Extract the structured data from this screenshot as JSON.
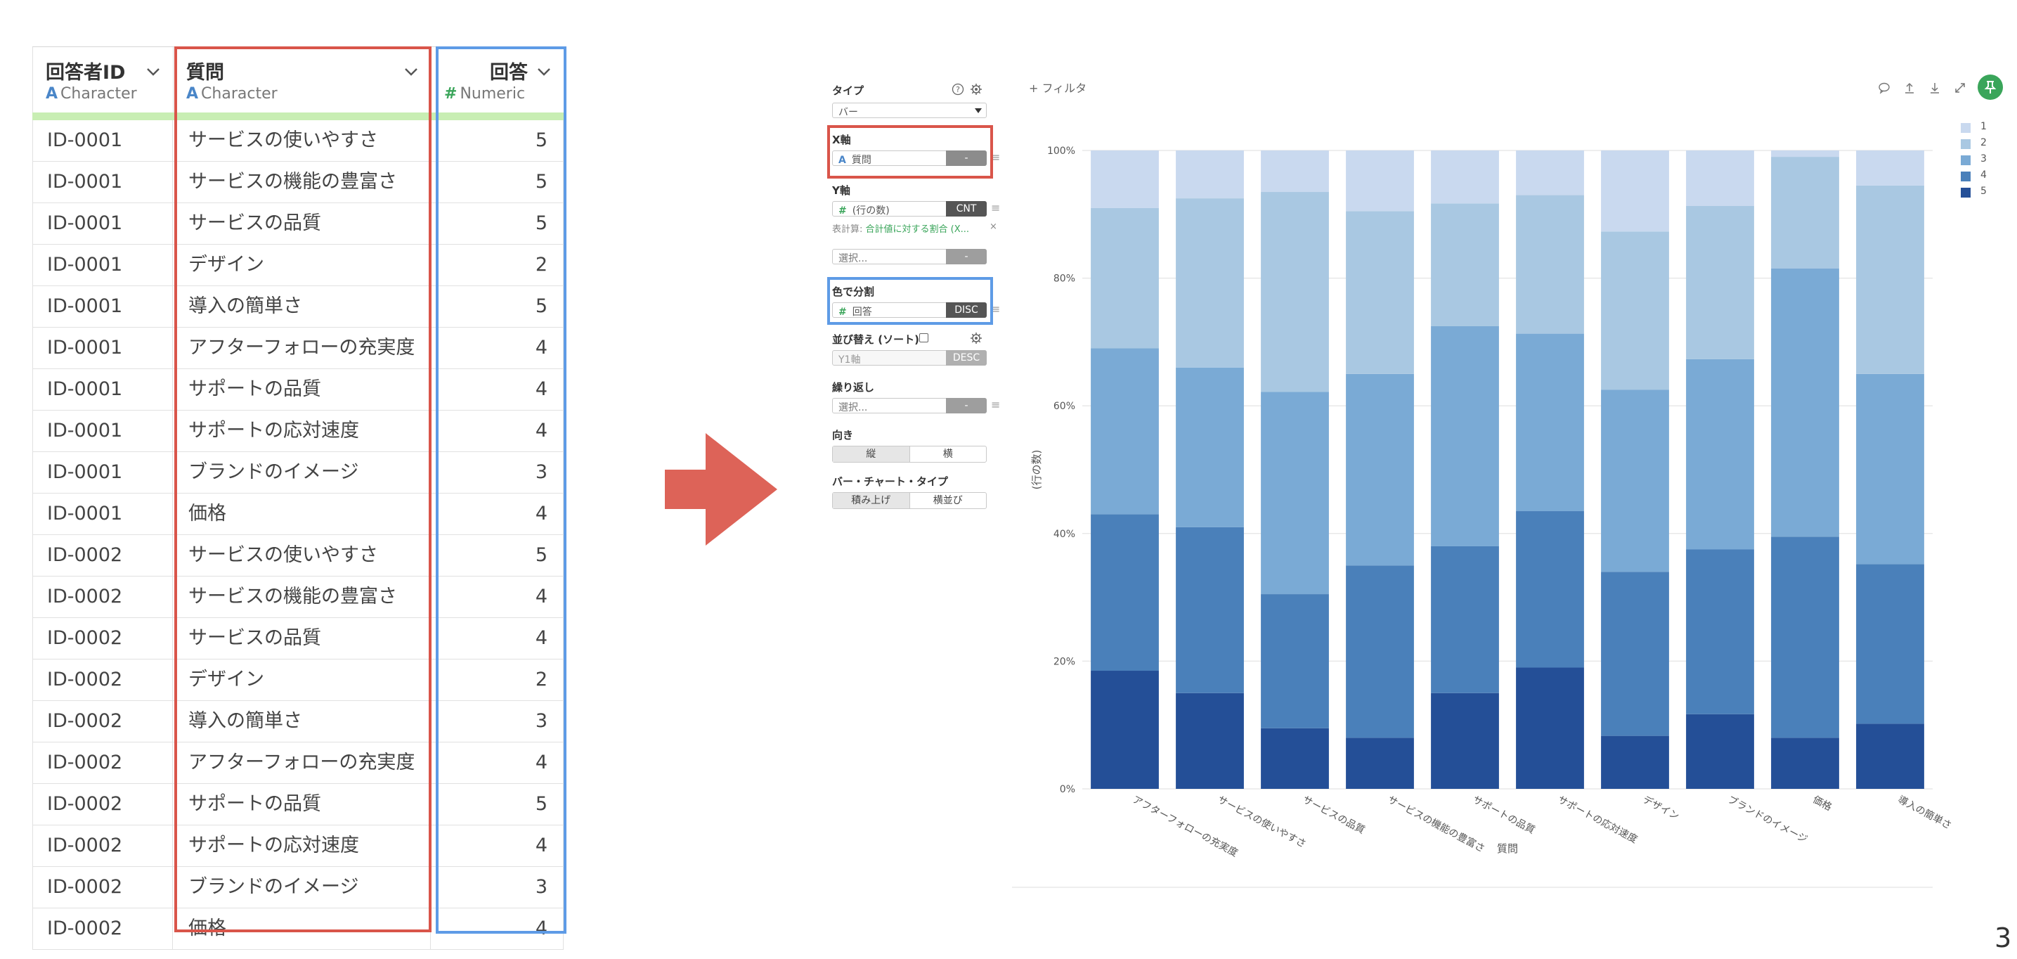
{
  "table": {
    "columns": [
      {
        "title": "回答者ID",
        "type_icon": "A",
        "type": "Character"
      },
      {
        "title": "質問",
        "type_icon": "A",
        "type": "Character"
      },
      {
        "title": "回答",
        "type_icon": "#",
        "type": "Numeric"
      }
    ],
    "rows": [
      [
        "ID-0001",
        "サービスの使いやすさ",
        "5"
      ],
      [
        "ID-0001",
        "サービスの機能の豊富さ",
        "5"
      ],
      [
        "ID-0001",
        "サービスの品質",
        "5"
      ],
      [
        "ID-0001",
        "デザイン",
        "2"
      ],
      [
        "ID-0001",
        "導入の簡単さ",
        "5"
      ],
      [
        "ID-0001",
        "アフターフォローの充実度",
        "4"
      ],
      [
        "ID-0001",
        "サポートの品質",
        "4"
      ],
      [
        "ID-0001",
        "サポートの応対速度",
        "4"
      ],
      [
        "ID-0001",
        "ブランドのイメージ",
        "3"
      ],
      [
        "ID-0001",
        "価格",
        "4"
      ],
      [
        "ID-0002",
        "サービスの使いやすさ",
        "5"
      ],
      [
        "ID-0002",
        "サービスの機能の豊富さ",
        "4"
      ],
      [
        "ID-0002",
        "サービスの品質",
        "4"
      ],
      [
        "ID-0002",
        "デザイン",
        "2"
      ],
      [
        "ID-0002",
        "導入の簡単さ",
        "3"
      ],
      [
        "ID-0002",
        "アフターフォローの充実度",
        "4"
      ],
      [
        "ID-0002",
        "サポートの品質",
        "5"
      ],
      [
        "ID-0002",
        "サポートの応対速度",
        "4"
      ],
      [
        "ID-0002",
        "ブランドのイメージ",
        "3"
      ],
      [
        "ID-0002",
        "価格",
        "4"
      ]
    ]
  },
  "panel": {
    "type_label": "タイプ",
    "type_value": "バー",
    "x_label": "X軸",
    "x_field": "質問",
    "x_button": "-",
    "y_label": "Y軸",
    "y_field": "(行の数)",
    "y_button": "CNT",
    "y_calc_prefix": "表計算:",
    "y_calc_value": "合計値に対する割合 (X...",
    "y_extra_placeholder": "選択...",
    "y_extra_button": "-",
    "color_label": "色で分割",
    "color_field": "回答",
    "color_button": "DISC",
    "sort_label": "並び替え (ソート)",
    "sort_field": "Y1軸",
    "sort_button": "DESC",
    "repeat_label": "繰り返し",
    "repeat_placeholder": "選択...",
    "repeat_button": "-",
    "orient_label": "向き",
    "orient_options": [
      "縦",
      "横"
    ],
    "bartype_label": "バー・チャート・タイプ",
    "bartype_options": [
      "積み上げ",
      "横並び"
    ]
  },
  "toolbar": {
    "filter": "フィルタ"
  },
  "colors": {
    "red_highlight": "#d9554a",
    "blue_highlight": "#5e9be6",
    "accent_green": "#3aa55a",
    "series": {
      "1": "#c9d9ef",
      "2": "#a9c8e2",
      "3": "#7aaad5",
      "4": "#4a80ba",
      "5": "#244f97"
    }
  },
  "chart_data": {
    "type": "bar",
    "stacked": true,
    "percent": true,
    "xlabel": "質問",
    "ylabel": "(行の数)",
    "yticks": [
      "0%",
      "20%",
      "40%",
      "60%",
      "80%",
      "100%"
    ],
    "categories": [
      "アフターフォローの充実度",
      "サービスの使いやすさ",
      "サービスの品質",
      "サービスの機能の豊富さ",
      "サポートの品質",
      "サポートの応対速度",
      "デザイン",
      "ブランドのイメージ",
      "価格",
      "導入の簡単さ"
    ],
    "series": [
      {
        "name": "5",
        "values": [
          18.5,
          15,
          9.5,
          8,
          15,
          19,
          8.3,
          11.7,
          8,
          10.2
        ]
      },
      {
        "name": "4",
        "values": [
          24.5,
          26,
          21,
          27,
          23,
          24.5,
          25.7,
          25.8,
          31.5,
          25
        ]
      },
      {
        "name": "3",
        "values": [
          26,
          25,
          31.7,
          30,
          34.5,
          27.8,
          28.5,
          29.8,
          42,
          29.8
        ]
      },
      {
        "name": "2",
        "values": [
          22,
          26.5,
          31.3,
          25.5,
          19.2,
          21.7,
          24.8,
          24,
          17.5,
          29.5
        ]
      },
      {
        "name": "1",
        "values": [
          9,
          7.5,
          6.5,
          9.5,
          8.3,
          7,
          12.7,
          8.7,
          1,
          5.5
        ]
      }
    ],
    "legend": [
      "1",
      "2",
      "3",
      "4",
      "5"
    ],
    "legend_position": "right"
  },
  "page_number": "3"
}
